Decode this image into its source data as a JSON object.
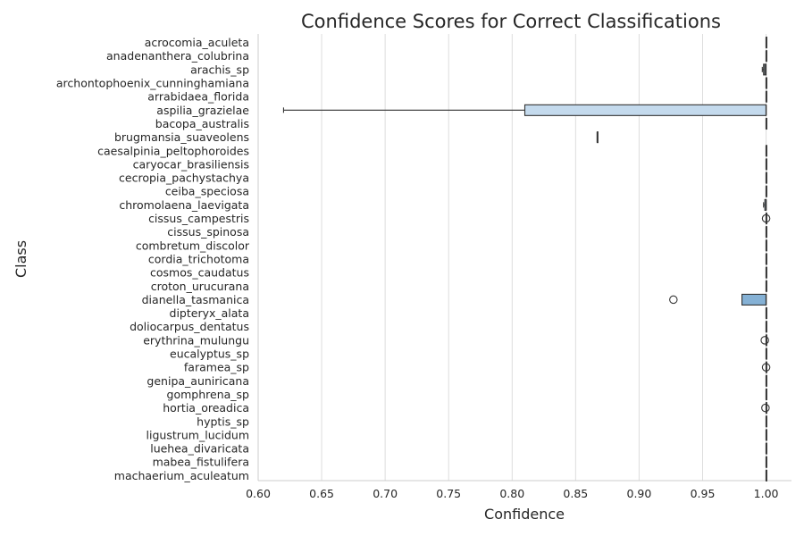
{
  "chart_data": {
    "type": "box",
    "orientation": "horizontal",
    "title": "Confidence Scores for Correct Classifications",
    "xlabel": "Confidence",
    "ylabel": "Class",
    "xlim": [
      0.6,
      1.02
    ],
    "xticks": [
      "0.60",
      "0.65",
      "0.70",
      "0.75",
      "0.80",
      "0.85",
      "0.90",
      "0.95",
      "1.00"
    ],
    "grid": "vertical",
    "colors": {
      "grid": "#dddddd",
      "spine": "#cccccc",
      "line": "#333333",
      "palette_light": "#dbe9f6",
      "palette_dark": "#4a8bbf"
    },
    "categories": [
      {
        "name": "acrocomia_aculeta",
        "q1": 1.0,
        "median": 1.0,
        "q3": 1.0,
        "whisker_low": 1.0,
        "whisker_high": 1.0,
        "outliers": []
      },
      {
        "name": "anadenanthera_colubrina",
        "q1": 1.0,
        "median": 1.0,
        "q3": 1.0,
        "whisker_low": 1.0,
        "whisker_high": 1.0,
        "outliers": []
      },
      {
        "name": "arachis_sp",
        "q1": 0.998,
        "median": 0.999,
        "q3": 1.0,
        "whisker_low": 0.997,
        "whisker_high": 1.0,
        "outliers": []
      },
      {
        "name": "archontophoenix_cunninghamiana",
        "q1": 1.0,
        "median": 1.0,
        "q3": 1.0,
        "whisker_low": 1.0,
        "whisker_high": 1.0,
        "outliers": []
      },
      {
        "name": "arrabidaea_florida",
        "q1": 1.0,
        "median": 1.0,
        "q3": 1.0,
        "whisker_low": 1.0,
        "whisker_high": 1.0,
        "outliers": []
      },
      {
        "name": "aspilia_grazielae",
        "q1": 0.81,
        "median": 1.0,
        "q3": 1.0,
        "whisker_low": 0.62,
        "whisker_high": 1.0,
        "outliers": []
      },
      {
        "name": "bacopa_australis",
        "q1": 1.0,
        "median": 1.0,
        "q3": 1.0,
        "whisker_low": 1.0,
        "whisker_high": 1.0,
        "outliers": []
      },
      {
        "name": "brugmansia_suaveolens",
        "q1": 0.867,
        "median": 0.867,
        "q3": 0.867,
        "whisker_low": 0.867,
        "whisker_high": 0.867,
        "outliers": []
      },
      {
        "name": "caesalpinia_peltophoroides",
        "q1": 1.0,
        "median": 1.0,
        "q3": 1.0,
        "whisker_low": 1.0,
        "whisker_high": 1.0,
        "outliers": []
      },
      {
        "name": "caryocar_brasiliensis",
        "q1": 1.0,
        "median": 1.0,
        "q3": 1.0,
        "whisker_low": 1.0,
        "whisker_high": 1.0,
        "outliers": []
      },
      {
        "name": "cecropia_pachystachya",
        "q1": 1.0,
        "median": 1.0,
        "q3": 1.0,
        "whisker_low": 1.0,
        "whisker_high": 1.0,
        "outliers": []
      },
      {
        "name": "ceiba_speciosa",
        "q1": 1.0,
        "median": 1.0,
        "q3": 1.0,
        "whisker_low": 1.0,
        "whisker_high": 1.0,
        "outliers": []
      },
      {
        "name": "chromolaena_laevigata",
        "q1": 0.999,
        "median": 1.0,
        "q3": 1.0,
        "whisker_low": 0.998,
        "whisker_high": 1.0,
        "outliers": []
      },
      {
        "name": "cissus_campestris",
        "q1": 1.0,
        "median": 1.0,
        "q3": 1.0,
        "whisker_low": 1.0,
        "whisker_high": 1.0,
        "outliers": [
          1.0
        ]
      },
      {
        "name": "cissus_spinosa",
        "q1": 1.0,
        "median": 1.0,
        "q3": 1.0,
        "whisker_low": 1.0,
        "whisker_high": 1.0,
        "outliers": []
      },
      {
        "name": "combretum_discolor",
        "q1": 1.0,
        "median": 1.0,
        "q3": 1.0,
        "whisker_low": 1.0,
        "whisker_high": 1.0,
        "outliers": []
      },
      {
        "name": "cordia_trichotoma",
        "q1": 1.0,
        "median": 1.0,
        "q3": 1.0,
        "whisker_low": 1.0,
        "whisker_high": 1.0,
        "outliers": []
      },
      {
        "name": "cosmos_caudatus",
        "q1": 1.0,
        "median": 1.0,
        "q3": 1.0,
        "whisker_low": 1.0,
        "whisker_high": 1.0,
        "outliers": []
      },
      {
        "name": "croton_urucurana",
        "q1": 1.0,
        "median": 1.0,
        "q3": 1.0,
        "whisker_low": 1.0,
        "whisker_high": 1.0,
        "outliers": []
      },
      {
        "name": "dianella_tasmanica",
        "q1": 0.981,
        "median": 1.0,
        "q3": 1.0,
        "whisker_low": 0.981,
        "whisker_high": 1.0,
        "outliers": [
          0.927
        ]
      },
      {
        "name": "dipteryx_alata",
        "q1": 1.0,
        "median": 1.0,
        "q3": 1.0,
        "whisker_low": 1.0,
        "whisker_high": 1.0,
        "outliers": []
      },
      {
        "name": "doliocarpus_dentatus",
        "q1": 1.0,
        "median": 1.0,
        "q3": 1.0,
        "whisker_low": 1.0,
        "whisker_high": 1.0,
        "outliers": []
      },
      {
        "name": "erythrina_mulungu",
        "q1": 1.0,
        "median": 1.0,
        "q3": 1.0,
        "whisker_low": 1.0,
        "whisker_high": 1.0,
        "outliers": [
          0.999
        ]
      },
      {
        "name": "eucalyptus_sp",
        "q1": 1.0,
        "median": 1.0,
        "q3": 1.0,
        "whisker_low": 1.0,
        "whisker_high": 1.0,
        "outliers": []
      },
      {
        "name": "faramea_sp",
        "q1": 1.0,
        "median": 1.0,
        "q3": 1.0,
        "whisker_low": 1.0,
        "whisker_high": 1.0,
        "outliers": [
          1.0
        ]
      },
      {
        "name": "genipa_auniricana",
        "q1": 1.0,
        "median": 1.0,
        "q3": 1.0,
        "whisker_low": 1.0,
        "whisker_high": 1.0,
        "outliers": []
      },
      {
        "name": "gomphrena_sp",
        "q1": 1.0,
        "median": 1.0,
        "q3": 1.0,
        "whisker_low": 1.0,
        "whisker_high": 1.0,
        "outliers": []
      },
      {
        "name": "hortia_oreadica",
        "q1": 1.0,
        "median": 1.0,
        "q3": 1.0,
        "whisker_low": 1.0,
        "whisker_high": 1.0,
        "outliers": [
          0.9995
        ]
      },
      {
        "name": "hyptis_sp",
        "q1": 1.0,
        "median": 1.0,
        "q3": 1.0,
        "whisker_low": 1.0,
        "whisker_high": 1.0,
        "outliers": []
      },
      {
        "name": "ligustrum_lucidum",
        "q1": 1.0,
        "median": 1.0,
        "q3": 1.0,
        "whisker_low": 1.0,
        "whisker_high": 1.0,
        "outliers": []
      },
      {
        "name": "luehea_divaricata",
        "q1": 1.0,
        "median": 1.0,
        "q3": 1.0,
        "whisker_low": 1.0,
        "whisker_high": 1.0,
        "outliers": []
      },
      {
        "name": "mabea_fistulifera",
        "q1": 1.0,
        "median": 1.0,
        "q3": 1.0,
        "whisker_low": 1.0,
        "whisker_high": 1.0,
        "outliers": []
      },
      {
        "name": "machaerium_aculeatum",
        "q1": 1.0,
        "median": 1.0,
        "q3": 1.0,
        "whisker_low": 1.0,
        "whisker_high": 1.0,
        "outliers": []
      }
    ]
  }
}
